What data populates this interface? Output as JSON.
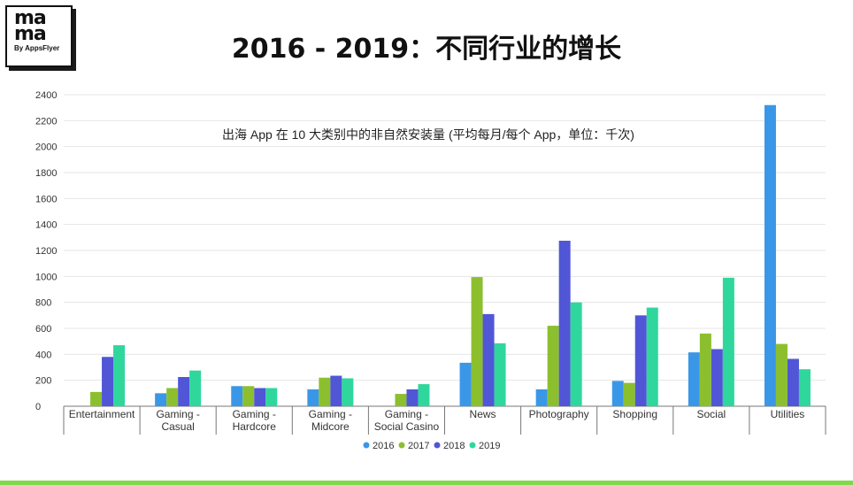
{
  "logo": {
    "word_line1": "ma",
    "word_line2": "ma",
    "by_text": "By AppsFlyer"
  },
  "page_title": "2016 - 2019：不同行业的增长",
  "colors": {
    "s2016": "#3a97e8",
    "s2017": "#8cbf2e",
    "s2018": "#5056d6",
    "s2019": "#2fd79d",
    "grid": "#e6e6e6",
    "axis": "#777777",
    "accent_bar": "#7fd94a"
  },
  "chart_data": {
    "type": "bar",
    "title": "出海 App 在 10 大类别中的非自然安装量 (平均每月/每个 App，单位：千次)",
    "categories": [
      [
        "Entertainment"
      ],
      [
        "Gaming -",
        "Casual"
      ],
      [
        "Gaming -",
        "Hardcore"
      ],
      [
        "Gaming -",
        "Midcore"
      ],
      [
        "Gaming -",
        "Social Casino"
      ],
      [
        "News"
      ],
      [
        "Photography"
      ],
      [
        "Shopping"
      ],
      [
        "Social"
      ],
      [
        "Utilities"
      ]
    ],
    "series": [
      {
        "name": "2016",
        "values": [
          0,
          100,
          155,
          130,
          0,
          335,
          130,
          195,
          415,
          2320
        ]
      },
      {
        "name": "2017",
        "values": [
          110,
          140,
          155,
          220,
          95,
          995,
          620,
          180,
          560,
          480
        ]
      },
      {
        "name": "2018",
        "values": [
          380,
          225,
          140,
          235,
          130,
          710,
          1275,
          700,
          440,
          365
        ]
      },
      {
        "name": "2019",
        "values": [
          470,
          275,
          140,
          215,
          170,
          485,
          800,
          760,
          990,
          285
        ]
      }
    ],
    "ylim": [
      0,
      2400
    ],
    "yticks": [
      0,
      200,
      400,
      600,
      800,
      1000,
      1200,
      1400,
      1600,
      1800,
      2000,
      2200,
      2400
    ],
    "grid": true,
    "legend_position": "bottom-center"
  }
}
